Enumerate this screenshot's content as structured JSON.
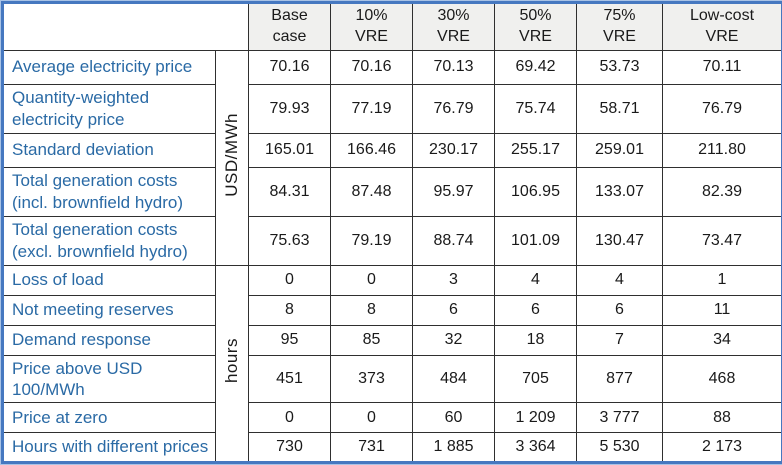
{
  "colors": {
    "outer_border": "#4678c0",
    "grid_line": "#2f2f2f",
    "header_bg": "#f0f0ee",
    "label_text": "#2a6aa5",
    "value_text": "#1a1a1a"
  },
  "table": {
    "corner_label": "",
    "columns": [
      {
        "label": "Base\ncase"
      },
      {
        "label": "10%\nVRE"
      },
      {
        "label": "30%\nVRE"
      },
      {
        "label": "50%\nVRE"
      },
      {
        "label": "75%\nVRE"
      },
      {
        "label": "Low-cost\nVRE"
      }
    ],
    "groups": [
      {
        "unit": "USD/MWh",
        "rows": [
          {
            "label": "Average electricity price",
            "values": [
              "70.16",
              "70.16",
              "70.13",
              "69.42",
              "53.73",
              "70.11"
            ]
          },
          {
            "label": "Quantity-weighted\nelectricity price",
            "values": [
              "79.93",
              "77.19",
              "76.79",
              "75.74",
              "58.71",
              "76.79"
            ]
          },
          {
            "label": "Standard deviation",
            "values": [
              "165.01",
              "166.46",
              "230.17",
              "255.17",
              "259.01",
              "211.80"
            ]
          },
          {
            "label": "Total generation costs\n(incl. brownfield hydro)",
            "values": [
              "84.31",
              "87.48",
              "95.97",
              "106.95",
              "133.07",
              "82.39"
            ]
          },
          {
            "label": "Total generation costs\n(excl. brownfield hydro)",
            "values": [
              "75.63",
              "79.19",
              "88.74",
              "101.09",
              "130.47",
              "73.47"
            ]
          }
        ]
      },
      {
        "unit": "hours",
        "rows": [
          {
            "label": "Loss of load",
            "values": [
              "0",
              "0",
              "3",
              "4",
              "4",
              "1"
            ]
          },
          {
            "label": "Not meeting reserves",
            "values": [
              "8",
              "8",
              "6",
              "6",
              "6",
              "11"
            ]
          },
          {
            "label": "Demand response",
            "values": [
              "95",
              "85",
              "32",
              "18",
              "7",
              "34"
            ]
          },
          {
            "label": "Price above USD 100/MWh",
            "values": [
              "451",
              "373",
              "484",
              "705",
              "877",
              "468"
            ]
          },
          {
            "label": "Price at zero",
            "values": [
              "0",
              "0",
              "60",
              "1 209",
              "3 777",
              "88"
            ]
          },
          {
            "label": "Hours with different prices",
            "values": [
              "730",
              "731",
              "1 885",
              "3 364",
              "5 530",
              "2 173"
            ]
          }
        ]
      }
    ]
  }
}
